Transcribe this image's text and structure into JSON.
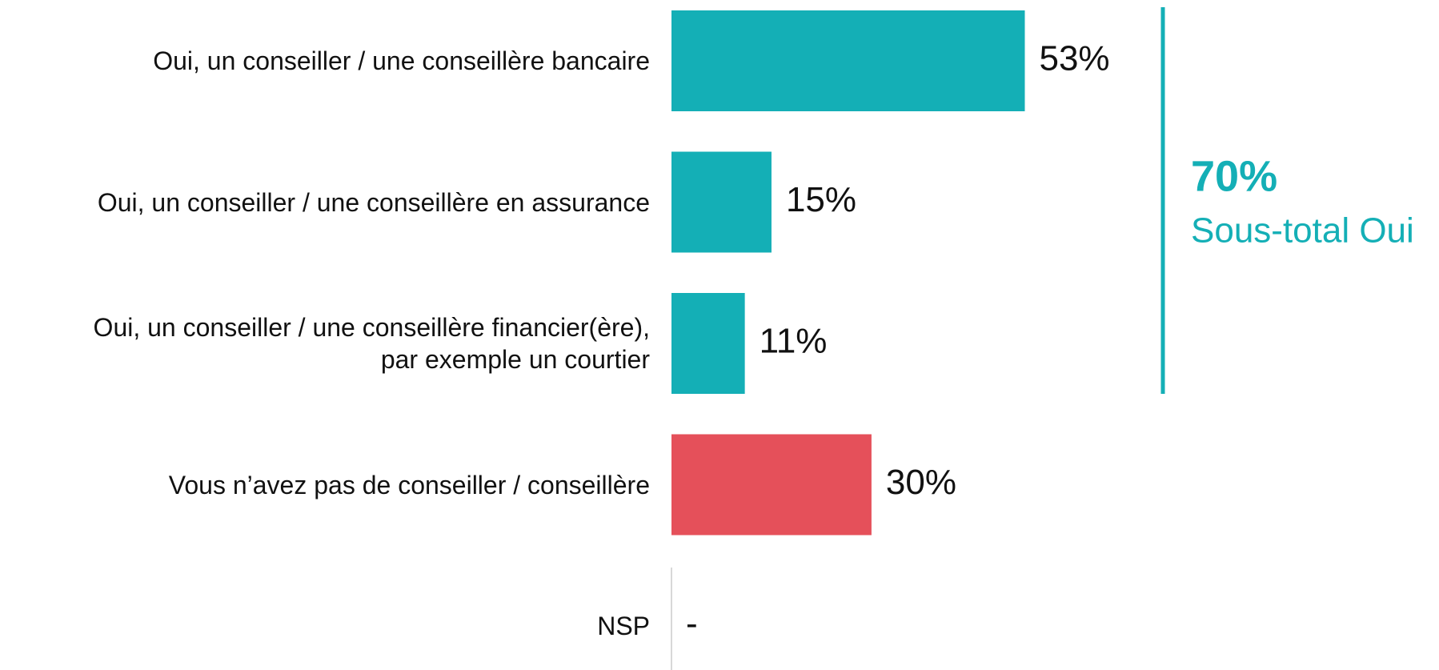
{
  "chart_data": {
    "type": "bar",
    "orientation": "horizontal",
    "categories": [
      "Oui, un conseiller / une conseillère bancaire",
      "Oui, un conseiller / une conseillère en assurance",
      "Oui, un conseiller / une conseillère financier(ère),\npar exemple un courtier",
      "Vous n’avez pas de conseiller / conseillère",
      "NSP"
    ],
    "values": [
      53,
      15,
      11,
      30,
      null
    ],
    "value_labels": [
      "53%",
      "15%",
      "11%",
      "30%",
      "-"
    ],
    "colors": [
      "#14afb6",
      "#14afb6",
      "#14afb6",
      "#e5505a",
      "#14afb6"
    ],
    "annotation": {
      "value": 70,
      "label": "70%",
      "text": "Sous-total Oui",
      "color": "#14afb6"
    }
  }
}
